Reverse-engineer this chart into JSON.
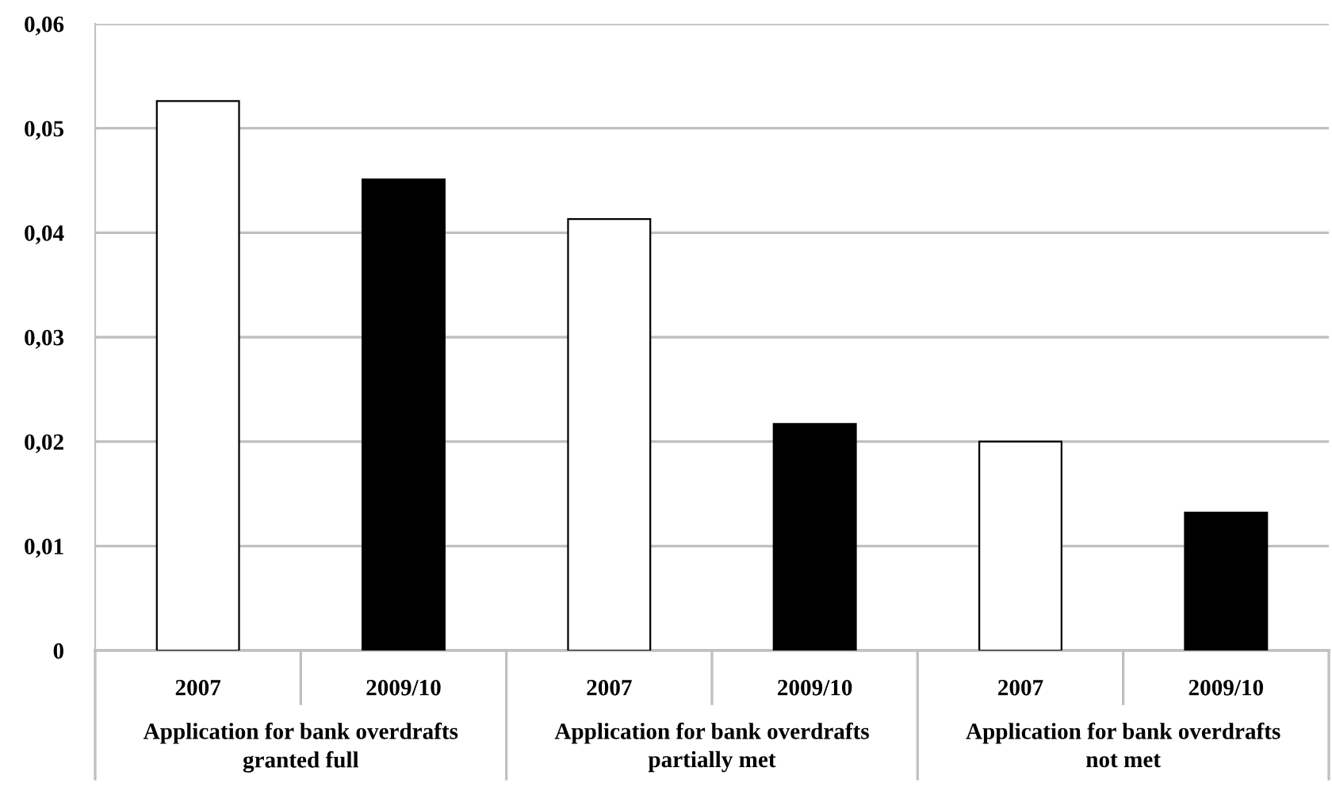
{
  "chart_data": {
    "type": "bar",
    "categories": [
      "2007",
      "2009/10",
      "2007",
      "2009/10",
      "2007",
      "2009/10"
    ],
    "values": [
      0.0526,
      0.0451,
      0.0413,
      0.0217,
      0.02,
      0.0132
    ],
    "colors": [
      "#ffffff",
      "#000000",
      "#ffffff",
      "#000000",
      "#ffffff",
      "#000000"
    ],
    "ylim": [
      0,
      0.06
    ],
    "yticks": [
      0,
      {
        "value": 0.01,
        "label": "0,01"
      },
      {
        "value": 0.02,
        "label": "0,02"
      },
      {
        "value": 0.03,
        "label": "0,03"
      },
      {
        "value": 0.04,
        "label": "0,04"
      },
      {
        "value": 0.05,
        "label": "0,05"
      },
      {
        "value": 0.06,
        "label": "0,06"
      }
    ],
    "grid": "y",
    "annotations": [
      "Application for bank overdrafts\ngranted full",
      "Application for bank overdrafts\npartially met",
      "Application for bank overdrafts\nnot met"
    ]
  }
}
